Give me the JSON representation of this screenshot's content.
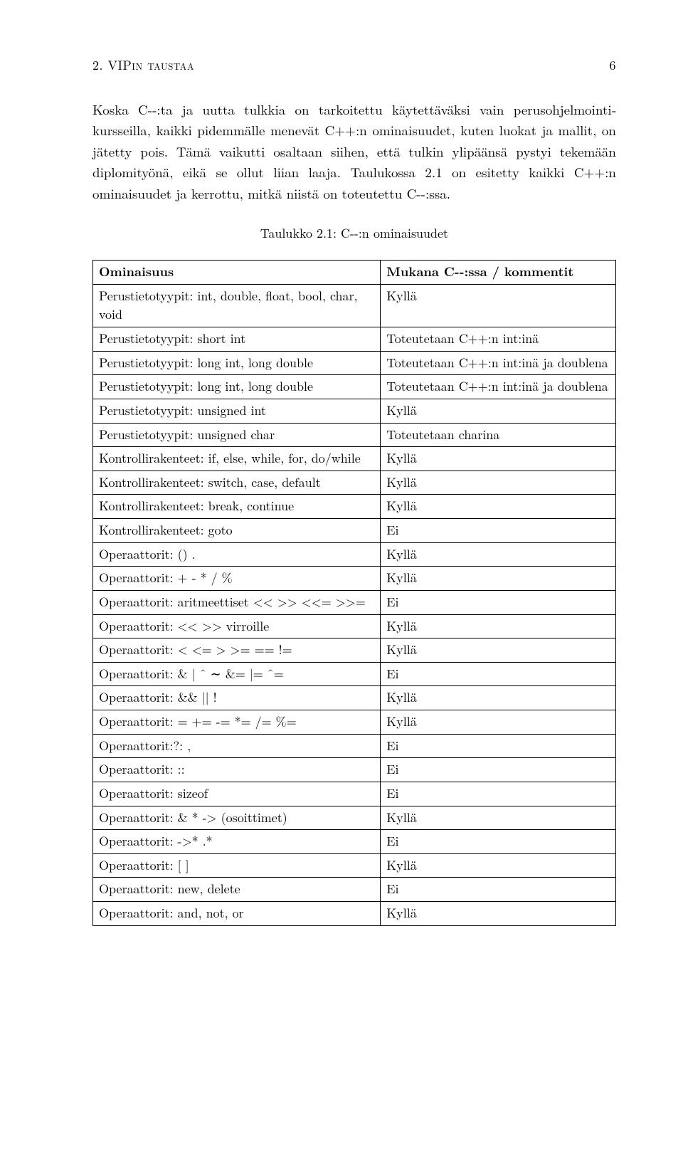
{
  "header": {
    "section": "2. VIPin taustaa",
    "page": "6"
  },
  "paragraph": "Koska C--:ta ja uutta tulkkia on tarkoitettu käytettäväksi vain perusohjelmointi­kursseilla, kaikki pidemmälle menevät C++:n ominaisuudet, kuten luokat ja mallit, on jätetty pois. Tämä vaikutti osaltaan siihen, että tulkin ylipäänsä pystyi tekemään diplomityönä, eikä se ollut liian laaja. Taulukossa 2.1 on esitetty kaikki C++:n ominaisuudet ja kerrottu, mitkä niistä on toteutettu C--:ssa.",
  "table": {
    "caption": "Taulukko 2.1: C--:n ominaisuudet",
    "header_left": "Ominaisuus",
    "header_right": "Mukana C--:ssa / kommentit",
    "rows": [
      {
        "l": "Perustietotyypit: int, double, float, bool, char, void",
        "r": "Kyllä"
      },
      {
        "l": "Perustietotyypit: short int",
        "r": "Toteutetaan C++:n int:inä"
      },
      {
        "l": "Perustietotyypit: long int, long double",
        "r": "Toteutetaan C++:n int:inä ja doublena"
      },
      {
        "l": "Perustietotyypit: long int, long double",
        "r": "Toteutetaan C++:n int:inä ja doublena"
      },
      {
        "l": "Perustietotyypit: unsigned int",
        "r": "Kyllä"
      },
      {
        "l": "Perustietotyypit: unsigned char",
        "r": "Toteutetaan charina"
      },
      {
        "l": "Kontrollirakenteet: if, else, while, for, do/while",
        "r": "Kyllä"
      },
      {
        "l": "Kontrollirakenteet: switch, case, default",
        "r": "Kyllä"
      },
      {
        "l": "Kontrollirakenteet: break, continue",
        "r": "Kyllä"
      },
      {
        "l": "Kontrollirakenteet: goto",
        "r": "Ei"
      },
      {
        "l": "Operaattorit: () .",
        "r": "Kyllä"
      },
      {
        "l": "Operaattorit: + - * / %",
        "r": "Kyllä"
      },
      {
        "l": "Operaattorit: aritmeettiset << >> <<= >>=",
        "r": "Ei"
      },
      {
        "l": "Operaattorit: << >> virroille",
        "r": "Kyllä"
      },
      {
        "l": "Operaattorit: < <= > >= == !=",
        "r": "Kyllä"
      },
      {
        "l": "Operaattorit: & | ˆ ∼ &= |= ˆ=",
        "r": "Ei"
      },
      {
        "l": "Operaattorit: && || !",
        "r": "Kyllä"
      },
      {
        "l": "Operaattorit: = += -= *= /= %=",
        "r": "Kyllä"
      },
      {
        "l": "Operaattorit:?: ,",
        "r": "Ei"
      },
      {
        "l": "Operaattorit: ::",
        "r": "Ei"
      },
      {
        "l": "Operaattorit: sizeof",
        "r": "Ei"
      },
      {
        "l": "Operaattorit: & * -> (osoittimet)",
        "r": "Kyllä"
      },
      {
        "l": "Operaattorit: ->* .*",
        "r": "Ei"
      },
      {
        "l": "Operaattorit: [ ]",
        "r": "Kyllä"
      },
      {
        "l": "Operaattorit: new, delete",
        "r": "Ei"
      },
      {
        "l": "Operaattorit: and, not, or",
        "r": "Kyllä"
      }
    ]
  }
}
